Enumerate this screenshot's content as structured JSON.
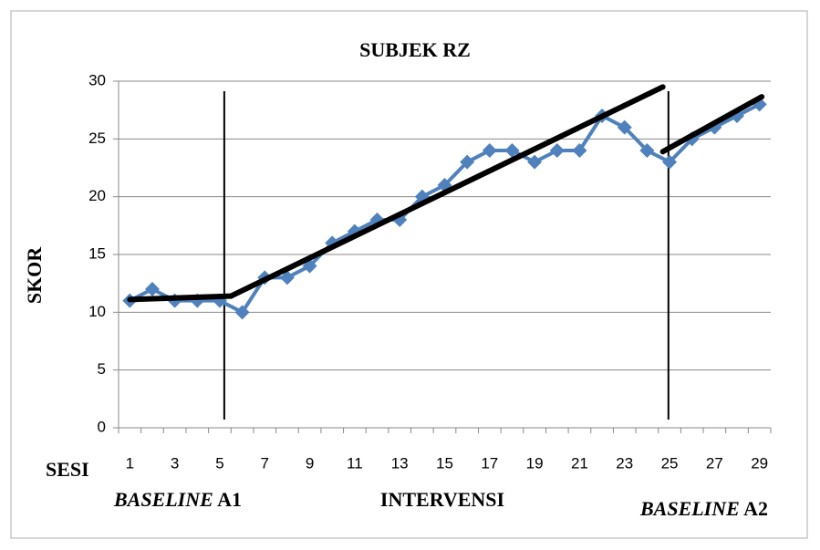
{
  "chart_data": {
    "type": "line",
    "title": "SUBJEK RZ",
    "y_label": "SKOR",
    "x_label": "SESI",
    "categories": [
      "1",
      null,
      "3",
      null,
      "5",
      null,
      "7",
      null,
      "9",
      null,
      "11",
      null,
      "13",
      null,
      "15",
      null,
      "17",
      null,
      "19",
      null,
      "21",
      null,
      "23",
      null,
      "25",
      null,
      "27",
      null,
      "29"
    ],
    "series": [
      {
        "name": "Skor",
        "color": "#4f81bd",
        "values": [
          11,
          12,
          11,
          11,
          11,
          10,
          13,
          13,
          14,
          16,
          17,
          18,
          18,
          20,
          21,
          23,
          24,
          24,
          23,
          24,
          24,
          27,
          26,
          24,
          23,
          25,
          26,
          27,
          28
        ]
      }
    ],
    "trend_lines": [
      {
        "x": [
          1,
          5.5
        ],
        "y": [
          11.1,
          11.4
        ]
      },
      {
        "x": [
          5.5,
          24.7
        ],
        "y": [
          11.4,
          29.5
        ]
      },
      {
        "x": [
          24.7,
          29.1
        ],
        "y": [
          23.9,
          28.65
        ]
      }
    ],
    "trend_color": "#000000",
    "phase_dividers": [
      5.2,
      24.95
    ],
    "phases": [
      {
        "italic": "BASELINE",
        "rest": "A1"
      },
      {
        "rest": "INTERVENSI"
      },
      {
        "italic": "BASELINE",
        "rest": "A2"
      }
    ],
    "ylim": [
      0,
      30
    ],
    "yticks": [
      0,
      5,
      10,
      15,
      20,
      25,
      30
    ],
    "grid": true
  }
}
